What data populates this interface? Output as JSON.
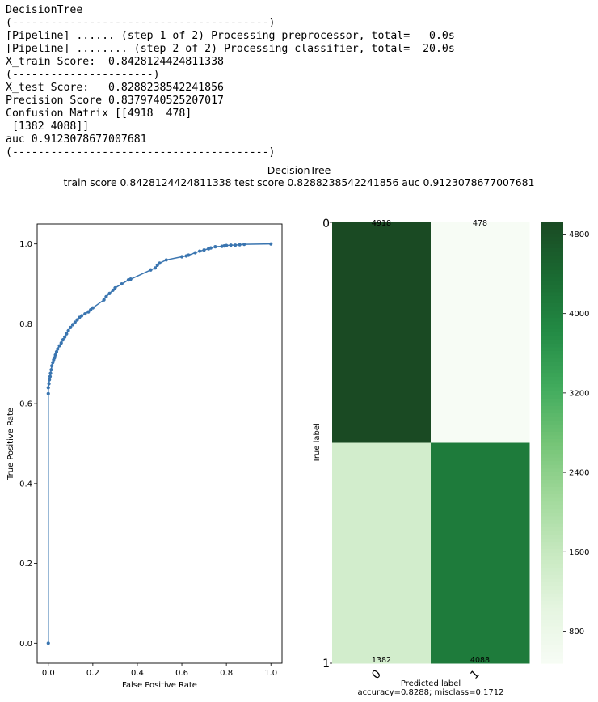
{
  "console_lines": [
    "DecisionTree",
    "(----------------------------------------)",
    "[Pipeline] ...... (step 1 of 2) Processing preprocessor, total=   0.0s",
    "[Pipeline] ........ (step 2 of 2) Processing classifier, total=  20.0s",
    "X_train Score:  0.8428124424811338",
    "(----------------------)",
    "X_test Score:   0.8288238542241856",
    "Precision Score 0.8379740525207017",
    "Confusion Matrix [[4918  478]",
    " [1382 4088]]",
    "auc 0.9123078677007681",
    "(----------------------------------------)"
  ],
  "figure": {
    "title": "DecisionTree",
    "subtitle": "train score  0.8428124424811338    test score  0.8288238542241856    auc  0.9123078677007681"
  },
  "chart_data": [
    {
      "type": "line",
      "xlabel": "False Positive Rate",
      "ylabel": "True Positive Rate",
      "xlim": [
        -0.05,
        1.05
      ],
      "ylim": [
        -0.05,
        1.05
      ],
      "xticks": [
        "0.0",
        "0.2",
        "0.4",
        "0.6",
        "0.8",
        "1.0"
      ],
      "yticks": [
        "0.0",
        "0.2",
        "0.4",
        "0.6",
        "0.8",
        "1.0"
      ],
      "line_color": "#3a75b0",
      "marker": "dot",
      "grid": false,
      "series": [
        {
          "x": [
            0.0,
            0.0,
            0.0,
            0.003,
            0.005,
            0.008,
            0.01,
            0.013,
            0.016,
            0.02,
            0.024,
            0.028,
            0.032,
            0.037,
            0.042,
            0.05,
            0.058,
            0.066,
            0.074,
            0.082,
            0.09,
            0.1,
            0.11,
            0.12,
            0.13,
            0.14,
            0.15,
            0.165,
            0.18,
            0.19,
            0.2,
            0.25,
            0.26,
            0.275,
            0.29,
            0.3,
            0.33,
            0.36,
            0.37,
            0.46,
            0.48,
            0.49,
            0.5,
            0.53,
            0.6,
            0.62,
            0.63,
            0.66,
            0.68,
            0.7,
            0.72,
            0.73,
            0.75,
            0.78,
            0.79,
            0.8,
            0.82,
            0.84,
            0.86,
            0.88,
            1.0
          ],
          "y": [
            0.0,
            0.625,
            0.64,
            0.65,
            0.66,
            0.668,
            0.676,
            0.685,
            0.695,
            0.703,
            0.71,
            0.715,
            0.722,
            0.73,
            0.737,
            0.745,
            0.752,
            0.76,
            0.767,
            0.775,
            0.783,
            0.791,
            0.798,
            0.804,
            0.81,
            0.816,
            0.82,
            0.825,
            0.83,
            0.835,
            0.84,
            0.86,
            0.868,
            0.876,
            0.884,
            0.89,
            0.9,
            0.91,
            0.912,
            0.935,
            0.94,
            0.947,
            0.952,
            0.96,
            0.968,
            0.97,
            0.972,
            0.978,
            0.982,
            0.985,
            0.988,
            0.99,
            0.993,
            0.994,
            0.995,
            0.996,
            0.997,
            0.997,
            0.998,
            0.999,
            1.0
          ]
        }
      ]
    },
    {
      "type": "heatmap",
      "categories": [
        "0",
        "1"
      ],
      "values": [
        [
          4918,
          478
        ],
        [
          1382,
          4088
        ]
      ],
      "ylabel": "True label",
      "xlabel": "Predicted label",
      "xlabel_note": "accuracy=0.8288; misclass=0.1712",
      "colormap": "Greens",
      "color_low": "#f7fcf5",
      "color_high": "#1a4a23",
      "vmin": 478,
      "vmax": 4918,
      "colorbar_ticks": [
        800,
        1600,
        2400,
        3200,
        4000,
        4800
      ]
    }
  ]
}
